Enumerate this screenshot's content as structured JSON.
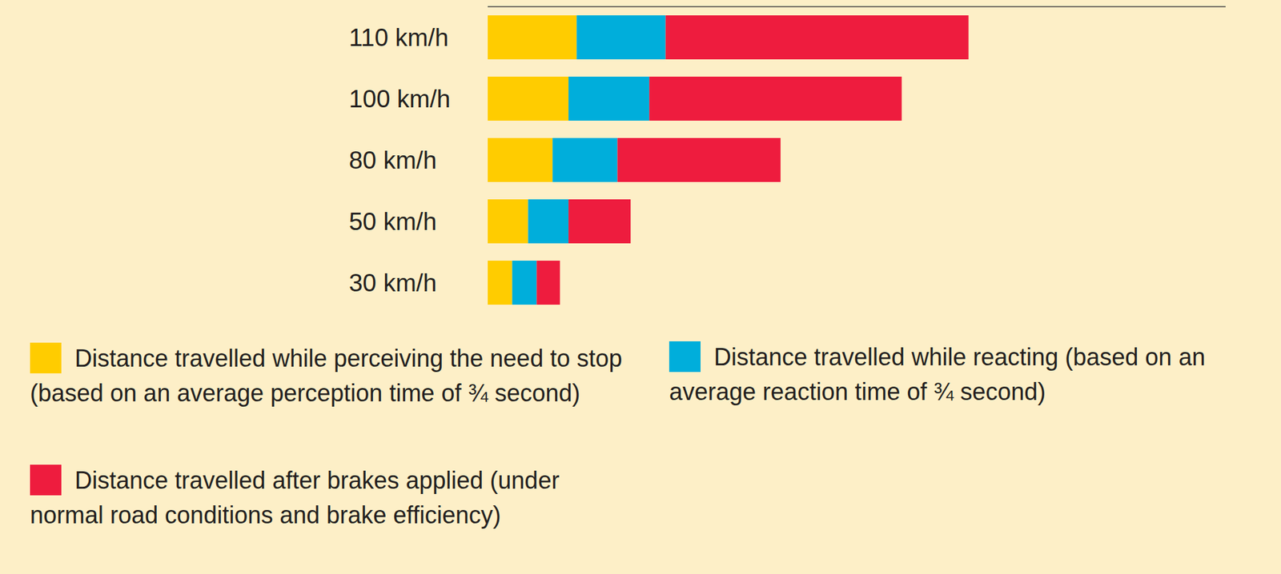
{
  "chart_data": {
    "type": "bar",
    "orientation": "horizontal",
    "stacked": true,
    "tick_labels": "y",
    "categories": [
      "110 km/h",
      "100 km/h",
      "80 km/h",
      "50 km/h",
      "30 km/h"
    ],
    "xlim": [
      0,
      190
    ],
    "xticks": [],
    "series": [
      {
        "name": "Distance travelled while perceiving the need to stop (based on an average perception time of ¾ second)",
        "color": "#ffcc00",
        "values": [
          22.9,
          20.8,
          16.7,
          10.4,
          6.3
        ]
      },
      {
        "name": "Distance travelled while reacting (based on an average reaction time of ¾ second)",
        "color": "#00aedb",
        "values": [
          22.9,
          20.8,
          16.7,
          10.4,
          6.3
        ]
      },
      {
        "name": "Distance travelled after brakes applied (under normal road conditions and brake efficiency)",
        "color": "#ee1c3e",
        "values": [
          78,
          65,
          42,
          16,
          6
        ]
      }
    ]
  }
}
